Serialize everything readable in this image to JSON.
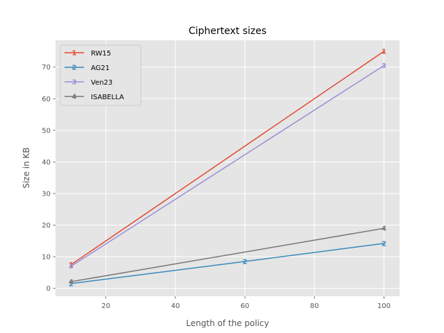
{
  "chart_data": {
    "type": "line",
    "title": "Ciphertext sizes",
    "xlabel": "Length of the policy",
    "ylabel": "Size in KB",
    "xlim": [
      5.5,
      104.5
    ],
    "ylim": [
      -2.5,
      78.5
    ],
    "xticks": [
      20,
      40,
      60,
      80,
      100
    ],
    "yticks": [
      0,
      10,
      20,
      30,
      40,
      50,
      60,
      70
    ],
    "grid": true,
    "legend_position": "top-left",
    "series": [
      {
        "name": "RW15",
        "color": "#E24A33",
        "marker": "1",
        "x": [
          10,
          100
        ],
        "y": [
          7.5,
          75.0
        ]
      },
      {
        "name": "AG21",
        "color": "#348ABD",
        "marker": "2",
        "x": [
          10,
          60,
          100
        ],
        "y": [
          1.5,
          8.5,
          14.2
        ]
      },
      {
        "name": "Ven23",
        "color": "#988ED5",
        "marker": "3",
        "x": [
          10,
          100
        ],
        "y": [
          7.0,
          70.5
        ]
      },
      {
        "name": "ISABELLA",
        "color": "#777777",
        "marker": "4",
        "x": [
          10,
          100
        ],
        "y": [
          2.1,
          19.0
        ]
      }
    ]
  }
}
